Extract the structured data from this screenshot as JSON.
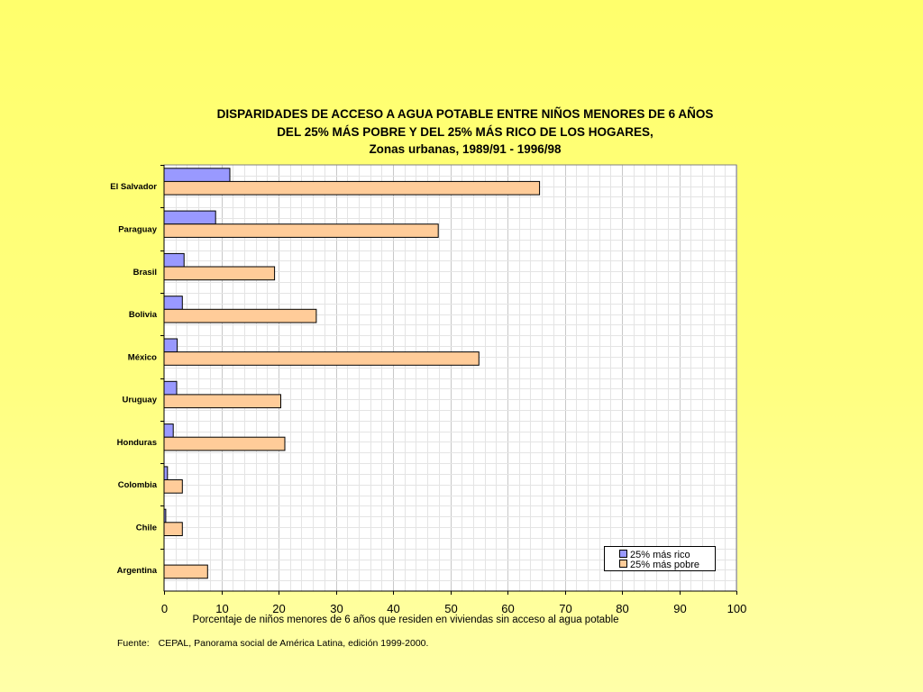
{
  "chart_data": {
    "type": "bar",
    "orientation": "horizontal",
    "title": [
      "DISPARIDADES DE ACCESO A AGUA POTABLE ENTRE NIÑOS MENORES DE 6 AÑOS",
      "DEL 25% MÁS POBRE Y DEL 25% MÁS RICO DE LOS HOGARES,",
      "Zonas urbanas, 1989/91 - 1996/98"
    ],
    "categories": [
      "El Salvador",
      "Paraguay",
      "Brasil",
      "Bolivia",
      "México",
      "Uruguay",
      "Honduras",
      "Colombia",
      "Chile",
      "Argentina"
    ],
    "series": [
      {
        "name": "25% más rico",
        "color": "#9999ff",
        "values": [
          11.5,
          9,
          3.5,
          3.2,
          2.3,
          2.2,
          1.6,
          0.6,
          0.3,
          0
        ]
      },
      {
        "name": "25% más pobre",
        "color": "#ffcc99",
        "values": [
          65.6,
          47.9,
          19.3,
          26.6,
          55,
          20.4,
          21.1,
          3.2,
          3.2,
          7.6
        ]
      }
    ],
    "xlabel": "Porcentaje de niños menores de 6 años que residen en viviendas sin acceso al agua potable",
    "ylabel": "",
    "xlim": [
      0,
      100
    ],
    "xticks": [
      "0",
      "10",
      "20",
      "30",
      "40",
      "50",
      "60",
      "70",
      "80",
      "90",
      "100"
    ],
    "grid": true,
    "legend_position": "bottom-right"
  },
  "source": {
    "label": "Fuente:",
    "text": "CEPAL, Panorama social de América Latina, edición 1999-2000."
  }
}
